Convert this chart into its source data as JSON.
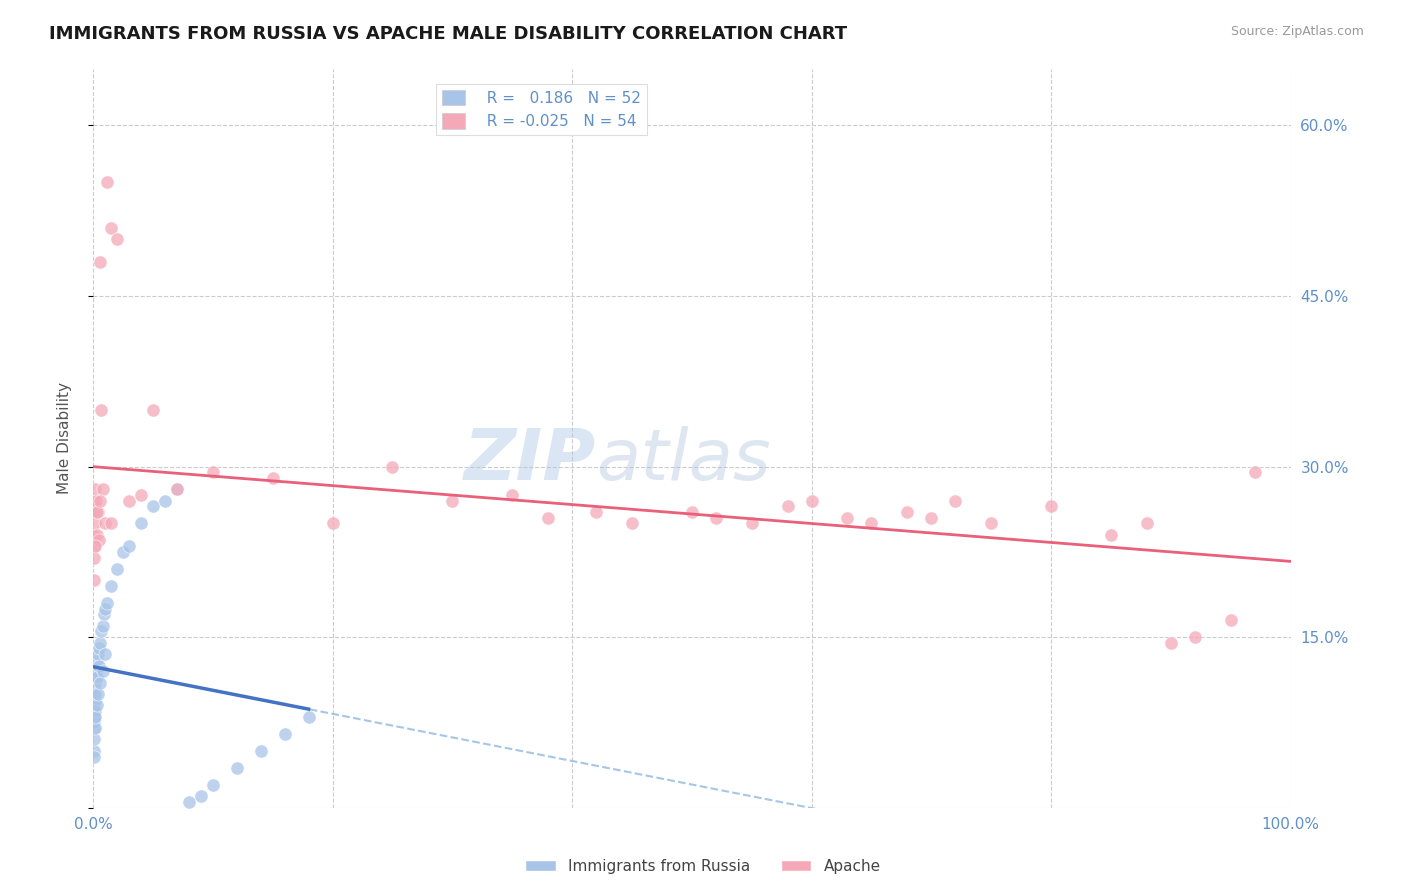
{
  "title": "IMMIGRANTS FROM RUSSIA VS APACHE MALE DISABILITY CORRELATION CHART",
  "source": "Source: ZipAtlas.com",
  "ylabel": "Male Disability",
  "legend_labels": [
    "Immigrants from Russia",
    "Apache"
  ],
  "r_blue": 0.186,
  "n_blue": 52,
  "r_pink": -0.025,
  "n_pink": 54,
  "color_blue": "#a8c4e8",
  "color_pink": "#f4a8b8",
  "line_blue_solid": "#4472c4",
  "line_blue_dashed": "#90b8e0",
  "line_pink_solid": "#e8607a",
  "xlim": [
    0.0,
    100.0
  ],
  "ylim": [
    0.0,
    65.0
  ],
  "ytick_vals": [
    0,
    15,
    30,
    45,
    60
  ],
  "ytick_labels": [
    "",
    "15.0%",
    "30.0%",
    "45.0%",
    "60.0%"
  ],
  "xtick_vals": [
    0,
    20,
    40,
    60,
    80,
    100
  ],
  "xtick_labels": [
    "0.0%",
    "",
    "",
    "",
    "",
    "100.0%"
  ],
  "axis_color": "#6090c8",
  "grid_color": "#cccccc",
  "watermark": "ZIPatlas",
  "blue_x": [
    0.05,
    0.05,
    0.05,
    0.08,
    0.08,
    0.1,
    0.1,
    0.12,
    0.12,
    0.15,
    0.15,
    0.15,
    0.18,
    0.2,
    0.2,
    0.25,
    0.3,
    0.3,
    0.4,
    0.5,
    0.5,
    0.6,
    0.7,
    0.8,
    0.9,
    1.0,
    1.2,
    1.5,
    2.0,
    2.5,
    3.0,
    4.0,
    5.0,
    6.0,
    7.0,
    8.0,
    9.0,
    10.0,
    12.0,
    14.0,
    16.0,
    18.0,
    0.05,
    0.07,
    0.1,
    0.15,
    0.2,
    0.3,
    0.4,
    0.6,
    0.8,
    1.0
  ],
  "blue_y": [
    9.0,
    8.0,
    7.0,
    8.5,
    7.5,
    9.5,
    8.0,
    10.0,
    9.0,
    10.5,
    9.5,
    8.5,
    11.0,
    11.5,
    10.0,
    12.0,
    13.0,
    11.5,
    13.5,
    14.0,
    12.5,
    14.5,
    15.5,
    16.0,
    17.0,
    17.5,
    18.0,
    19.5,
    21.0,
    22.5,
    23.0,
    25.0,
    26.5,
    27.0,
    28.0,
    0.5,
    1.0,
    2.0,
    3.5,
    5.0,
    6.5,
    8.0,
    5.0,
    4.5,
    6.0,
    7.0,
    8.0,
    9.0,
    10.0,
    11.0,
    12.0,
    13.5
  ],
  "pink_x": [
    0.05,
    0.08,
    0.1,
    0.12,
    0.15,
    0.2,
    0.25,
    0.3,
    0.4,
    0.5,
    0.6,
    0.7,
    0.8,
    1.0,
    1.2,
    1.5,
    2.0,
    3.0,
    4.0,
    5.0,
    7.0,
    10.0,
    15.0,
    20.0,
    25.0,
    30.0,
    35.0,
    38.0,
    42.0,
    45.0,
    50.0,
    52.0,
    55.0,
    58.0,
    60.0,
    63.0,
    65.0,
    68.0,
    70.0,
    72.0,
    75.0,
    80.0,
    85.0,
    88.0,
    90.0,
    92.0,
    95.0,
    97.0,
    0.06,
    0.1,
    0.15,
    0.3,
    0.6,
    1.5
  ],
  "pink_y": [
    27.0,
    23.0,
    24.0,
    26.0,
    28.0,
    25.0,
    27.0,
    24.0,
    26.0,
    23.5,
    48.0,
    35.0,
    28.0,
    25.0,
    55.0,
    51.0,
    50.0,
    27.0,
    27.5,
    35.0,
    28.0,
    29.5,
    29.0,
    25.0,
    30.0,
    27.0,
    27.5,
    25.5,
    26.0,
    25.0,
    26.0,
    25.5,
    25.0,
    26.5,
    27.0,
    25.5,
    25.0,
    26.0,
    25.5,
    27.0,
    25.0,
    26.5,
    24.0,
    25.0,
    14.5,
    15.0,
    16.5,
    29.5,
    22.0,
    20.0,
    23.0,
    26.0,
    27.0,
    25.0
  ]
}
